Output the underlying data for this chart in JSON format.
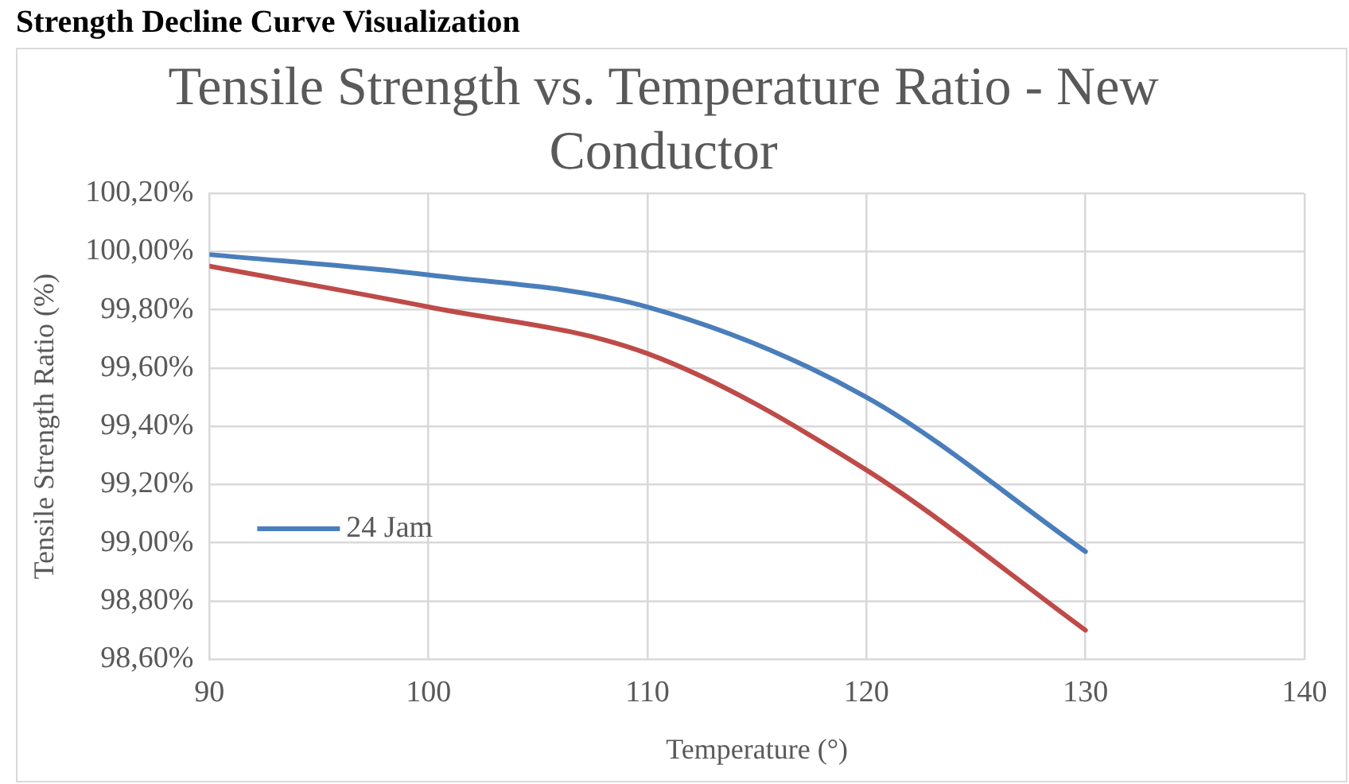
{
  "chart_data": {
    "type": "line",
    "title": "Tensile Strength vs. Temperature Ratio - New Conductor",
    "xlabel": "Temperature (°)",
    "ylabel": "Tensile Strength Ratio (%)",
    "annotations": [
      "Strength Decline Curve Visualization"
    ],
    "x": [
      90,
      100,
      110,
      120,
      130
    ],
    "series": [
      {
        "name": "24 Jam",
        "color": "#4a7ebb",
        "values": [
          99.99,
          99.92,
          99.81,
          99.5,
          98.97
        ]
      },
      {
        "color": "#be4b48",
        "values": [
          99.95,
          99.81,
          99.65,
          99.25,
          98.7
        ]
      }
    ],
    "xlim": [
      90,
      140
    ],
    "xticks": [
      90,
      100,
      110,
      120,
      130,
      140
    ],
    "ylim": [
      98.6,
      100.2
    ],
    "yticks": [
      {
        "value": 98.6,
        "label": "98,60%"
      },
      {
        "value": 98.8,
        "label": "98,80%"
      },
      {
        "value": 99,
        "label": "99,00%"
      },
      {
        "value": 99.2,
        "label": "99,20%"
      },
      {
        "value": 99.4,
        "label": "99,40%"
      },
      {
        "value": 99.6,
        "label": "99,60%"
      },
      {
        "value": 99.8,
        "label": "99,80%"
      },
      {
        "value": 100,
        "label": "100,00%"
      },
      {
        "value": 100.2,
        "label": "100,20%"
      }
    ],
    "grid": true,
    "legend": "bottom left",
    "marker": "none",
    "line_style": "solid"
  }
}
